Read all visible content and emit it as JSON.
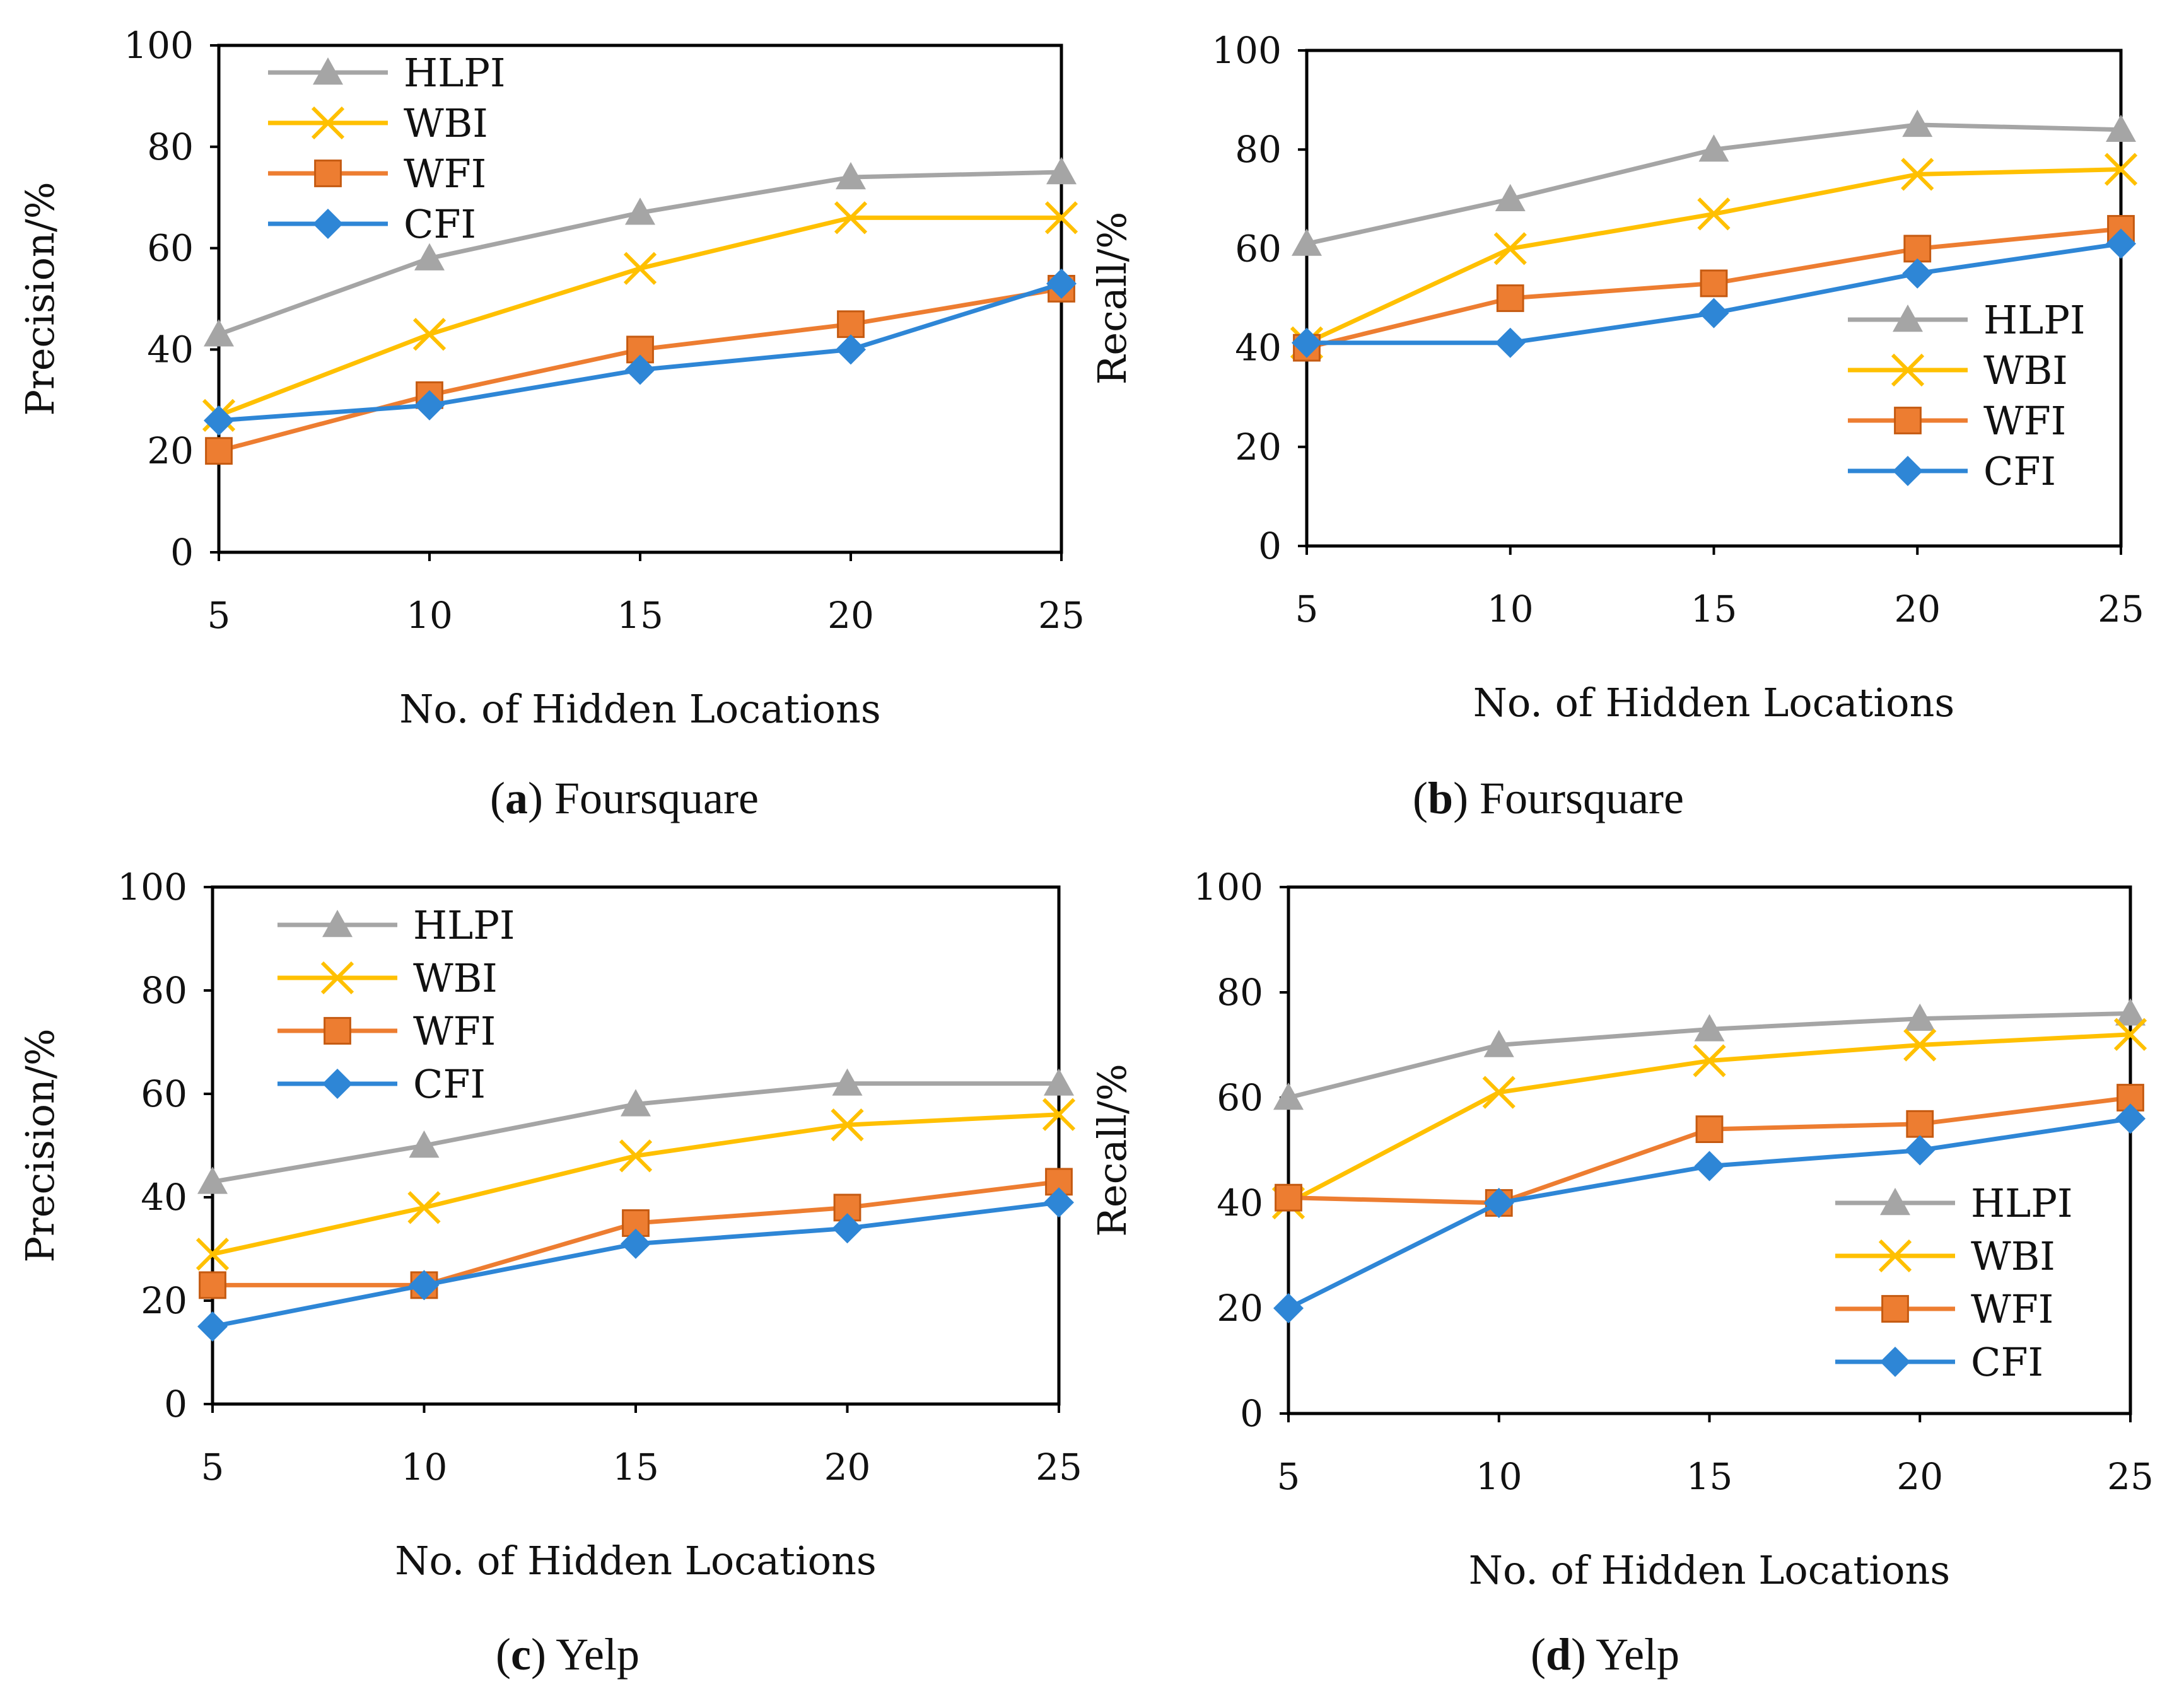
{
  "colors": {
    "HLPI": "#a5a5a5",
    "WBI": "#ffc000",
    "WFI": "#ed7d31",
    "CFI": "#2e86d6"
  },
  "chart_data": [
    {
      "type": "line",
      "panel": "a",
      "caption_letter": "a",
      "caption_text": "Foursquare",
      "xlabel": "No. of  Hidden Locations",
      "ylabel": "Precision/%",
      "x": [
        5,
        10,
        15,
        20,
        25
      ],
      "x_tick_labels": [
        "5",
        "10",
        "15",
        "20",
        "25"
      ],
      "ylim": [
        0,
        100
      ],
      "y_ticks": [
        0,
        20,
        40,
        60,
        80,
        100
      ],
      "legend_position": "top-left",
      "series": [
        {
          "name": "HLPI",
          "marker": "triangle",
          "values": [
            43,
            58,
            67,
            74,
            75
          ]
        },
        {
          "name": "WBI",
          "marker": "x",
          "values": [
            27,
            43,
            56,
            66,
            66
          ]
        },
        {
          "name": "WFI",
          "marker": "square",
          "values": [
            20,
            31,
            40,
            45,
            52
          ]
        },
        {
          "name": "CFI",
          "marker": "diamond",
          "values": [
            26,
            29,
            36,
            40,
            53
          ]
        }
      ]
    },
    {
      "type": "line",
      "panel": "b",
      "caption_letter": "b",
      "caption_text": "Foursquare",
      "xlabel": "No. of  Hidden Locations",
      "ylabel": "Recall/%",
      "x": [
        5,
        10,
        15,
        20,
        25
      ],
      "x_tick_labels": [
        "5",
        "10",
        "15",
        "20",
        "25"
      ],
      "ylim": [
        0,
        100
      ],
      "y_ticks": [
        0,
        20,
        40,
        60,
        80,
        100
      ],
      "legend_position": "bottom-right",
      "series": [
        {
          "name": "HLPI",
          "marker": "triangle",
          "values": [
            61,
            70,
            80,
            85,
            84
          ]
        },
        {
          "name": "WBI",
          "marker": "x",
          "values": [
            41,
            60,
            67,
            75,
            76
          ]
        },
        {
          "name": "WFI",
          "marker": "square",
          "values": [
            40,
            50,
            53,
            60,
            64
          ]
        },
        {
          "name": "CFI",
          "marker": "diamond",
          "values": [
            41,
            41,
            47,
            55,
            61
          ]
        }
      ]
    },
    {
      "type": "line",
      "panel": "c",
      "caption_letter": "c",
      "caption_text": "Yelp",
      "xlabel": "No. of  Hidden Locations",
      "ylabel": "Precision/%",
      "x": [
        5,
        10,
        15,
        20,
        25
      ],
      "x_tick_labels": [
        "5",
        "10",
        "15",
        "20",
        "25"
      ],
      "ylim": [
        0,
        100
      ],
      "y_ticks": [
        0,
        20,
        40,
        60,
        80,
        100
      ],
      "legend_position": "top-left",
      "series": [
        {
          "name": "HLPI",
          "marker": "triangle",
          "values": [
            43,
            50,
            58,
            62,
            62
          ]
        },
        {
          "name": "WBI",
          "marker": "x",
          "values": [
            29,
            38,
            48,
            54,
            56
          ]
        },
        {
          "name": "WFI",
          "marker": "square",
          "values": [
            23,
            23,
            35,
            38,
            43
          ]
        },
        {
          "name": "CFI",
          "marker": "diamond",
          "values": [
            15,
            23,
            31,
            34,
            39
          ]
        }
      ]
    },
    {
      "type": "line",
      "panel": "d",
      "caption_letter": "d",
      "caption_text": "Yelp",
      "xlabel": "No. of  Hidden Locations",
      "ylabel": "Recall/%",
      "x": [
        5,
        10,
        15,
        20,
        25
      ],
      "x_tick_labels": [
        "5",
        "10",
        "15",
        "20",
        "25"
      ],
      "ylim": [
        0,
        100
      ],
      "y_ticks": [
        0,
        20,
        40,
        60,
        80,
        100
      ],
      "legend_position": "bottom-right",
      "series": [
        {
          "name": "HLPI",
          "marker": "triangle",
          "values": [
            60,
            70,
            73,
            75,
            76
          ]
        },
        {
          "name": "WBI",
          "marker": "x",
          "values": [
            40,
            61,
            67,
            70,
            72
          ]
        },
        {
          "name": "WFI",
          "marker": "square",
          "values": [
            41,
            40,
            54,
            55,
            60
          ]
        },
        {
          "name": "CFI",
          "marker": "diamond",
          "values": [
            20,
            40,
            47,
            50,
            56
          ]
        }
      ]
    }
  ]
}
